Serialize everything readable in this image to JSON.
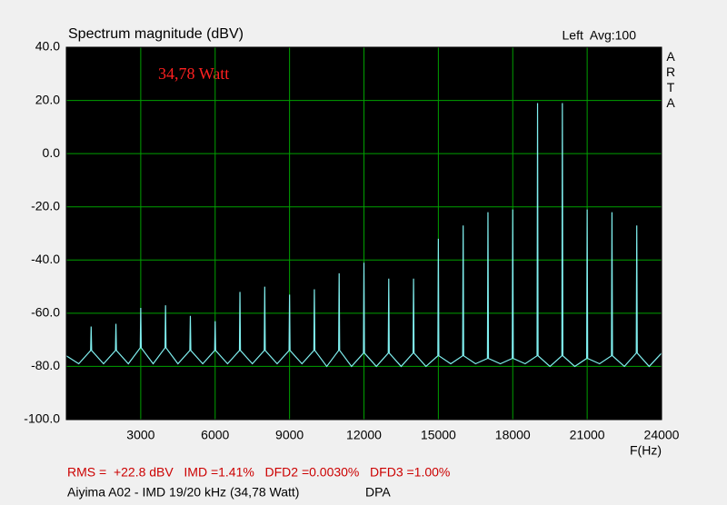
{
  "chart_data": {
    "type": "line",
    "title": "Spectrum magnitude (dBV)",
    "channel_info": "Left  Avg:100",
    "brand": "ARTA",
    "annotation": "34,78 Watt",
    "xlabel": "F(Hz)",
    "footer_stats": "RMS =  +22.8 dBV   IMD =1.41%   DFD2 =0.0030%   DFD3 =1.00%",
    "footer_desc": "Aiyima A02 - IMD 19/20 kHz (34,78 Watt)",
    "footer_tag": "DPA",
    "color": "#80f0f0",
    "grid": true,
    "xlim": [
      0,
      24000
    ],
    "xticks": [
      3000,
      6000,
      9000,
      12000,
      15000,
      18000,
      21000,
      24000
    ],
    "ylim": [
      -100,
      40
    ],
    "yticks": [
      {
        "value": 40,
        "label": "40.0"
      },
      {
        "value": 20,
        "label": "20.0"
      },
      {
        "value": 0,
        "label": "0.0"
      },
      {
        "value": -20,
        "label": "-20.0"
      },
      {
        "value": -40,
        "label": "-40.0"
      },
      {
        "value": -60,
        "label": "-60.0"
      },
      {
        "value": -80,
        "label": "-80.0"
      },
      {
        "value": -100,
        "label": "-100.0"
      }
    ],
    "x": [
      0,
      500,
      980,
      1000,
      1020,
      1500,
      1980,
      2000,
      2020,
      2500,
      2980,
      3000,
      3020,
      3500,
      3980,
      4000,
      4020,
      4500,
      4980,
      5000,
      5020,
      5500,
      5980,
      6000,
      6020,
      6500,
      6980,
      7000,
      7020,
      7500,
      7980,
      8000,
      8020,
      8500,
      8980,
      9000,
      9020,
      9500,
      9980,
      10000,
      10020,
      10500,
      10980,
      11000,
      11020,
      11500,
      11980,
      12000,
      12020,
      12500,
      12980,
      13000,
      13020,
      13500,
      13980,
      14000,
      14020,
      14500,
      14980,
      15000,
      15020,
      15500,
      15980,
      16000,
      16020,
      16500,
      16980,
      17000,
      17020,
      17500,
      17980,
      18000,
      18020,
      18500,
      18980,
      19000,
      19020,
      19500,
      19980,
      20000,
      20020,
      20500,
      20980,
      21000,
      21020,
      21500,
      21980,
      22000,
      22020,
      22500,
      22980,
      23000,
      23020,
      23500,
      24000
    ],
    "values": [
      -76,
      -79,
      -74,
      -65,
      -74,
      -79,
      -74,
      -64,
      -74,
      -79,
      -73,
      -58,
      -73,
      -79,
      -73,
      -57,
      -73,
      -79,
      -74,
      -61,
      -74,
      -79,
      -74,
      -63,
      -74,
      -79,
      -74,
      -52,
      -74,
      -79,
      -74,
      -50,
      -74,
      -79,
      -74,
      -53,
      -74,
      -79,
      -74,
      -51,
      -74,
      -80,
      -74,
      -45,
      -74,
      -80,
      -75,
      -41,
      -75,
      -80,
      -75,
      -47,
      -75,
      -80,
      -75,
      -47,
      -75,
      -80,
      -76,
      -32,
      -76,
      -79,
      -76,
      -27,
      -76,
      -79,
      -77,
      -22,
      -77,
      -79,
      -77,
      -21,
      -77,
      -79,
      -76,
      19,
      -76,
      -80,
      -76,
      19,
      -76,
      -80,
      -77,
      -21,
      -77,
      -79,
      -76,
      -22,
      -76,
      -80,
      -75,
      -27,
      -75,
      -80,
      -75
    ]
  }
}
